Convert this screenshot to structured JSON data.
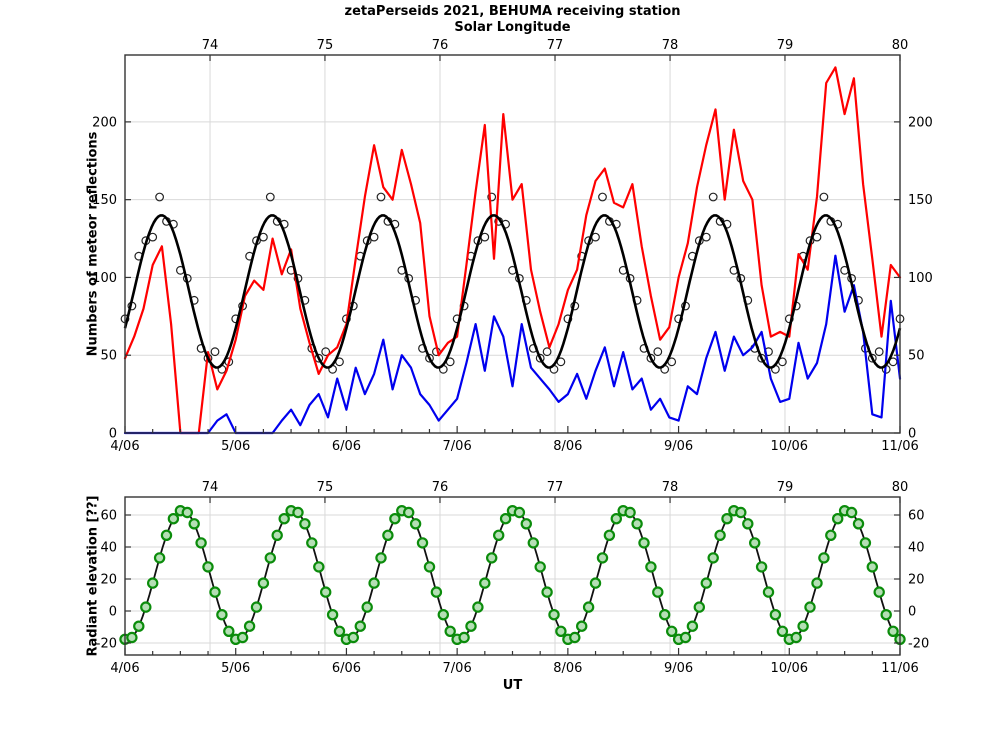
{
  "title": "zetaPerseids 2021, BEHUMA receiving station",
  "top_axis_title": "Solar Longitude",
  "chart_data": [
    {
      "type": "line",
      "ylabel": "Numbers of meteor reflections",
      "xlim": [
        4,
        11
      ],
      "ylim": [
        0,
        243
      ],
      "y_ticks": [
        0,
        50,
        100,
        150,
        200
      ],
      "day_ticks": {
        "positions": [
          4,
          5,
          6,
          7,
          8,
          9,
          10,
          11
        ],
        "labels": [
          "4/06",
          "5/06",
          "6/06",
          "7/06",
          "8/06",
          "9/06",
          "10/06",
          "11/06"
        ],
        "minor_step": 0.25
      },
      "lon_axis": {
        "values": [
          74,
          75,
          76,
          77,
          78,
          79,
          80
        ],
        "day_positions": [
          4.768,
          5.806,
          6.845,
          7.884,
          8.923,
          9.961,
          11.0
        ]
      },
      "grid_color": "#d9d9d9",
      "series": [
        {
          "name": "underdense-counts-red-line",
          "kind": "line",
          "z": 1,
          "color": "#ff0000",
          "width": 2.2,
          "x_start": 4,
          "x_step": 0.0833333,
          "values": [
            48,
            62,
            80,
            108,
            120,
            70,
            0,
            0,
            0,
            52,
            28,
            40,
            60,
            88,
            98,
            92,
            125,
            102,
            118,
            80,
            58,
            38,
            50,
            55,
            70,
            112,
            152,
            185,
            158,
            150,
            182,
            160,
            135,
            75,
            50,
            58,
            62,
            108,
            155,
            198,
            112,
            205,
            150,
            160,
            105,
            78,
            55,
            70,
            92,
            105,
            140,
            162,
            170,
            148,
            145,
            160,
            120,
            88,
            60,
            68,
            100,
            122,
            158,
            185,
            208,
            150,
            195,
            162,
            150,
            95,
            62,
            65,
            62,
            115,
            105,
            152,
            225,
            235,
            205,
            228,
            160,
            112,
            62,
            108,
            100
          ]
        },
        {
          "name": "overdense-counts-blue-line",
          "kind": "line",
          "z": 2,
          "color": "#0000ee",
          "width": 2.2,
          "x_start": 4,
          "x_step": 0.0833333,
          "values": [
            0,
            0,
            0,
            0,
            0,
            0,
            0,
            0,
            0,
            0,
            8,
            12,
            0,
            0,
            0,
            0,
            0,
            8,
            15,
            5,
            18,
            25,
            10,
            35,
            15,
            42,
            25,
            38,
            60,
            28,
            50,
            42,
            25,
            18,
            8,
            15,
            22,
            45,
            70,
            40,
            75,
            62,
            30,
            70,
            42,
            35,
            28,
            20,
            25,
            38,
            22,
            40,
            55,
            30,
            52,
            28,
            35,
            15,
            22,
            10,
            8,
            30,
            25,
            48,
            65,
            40,
            62,
            50,
            55,
            65,
            35,
            20,
            22,
            58,
            35,
            45,
            70,
            114,
            78,
            95,
            65,
            12,
            10,
            85,
            35
          ]
        },
        {
          "name": "sinusoidal-fit-black-line",
          "kind": "model-line",
          "z": 3,
          "color": "#000000",
          "width": 2.6,
          "model": {
            "mean": 91,
            "amplitude": 49,
            "period_days": 1,
            "peak_day_fraction": 0.33
          }
        },
        {
          "name": "hourly-counts-open-circles",
          "kind": "model-markers",
          "z": 0,
          "marker": "open-circle",
          "stroke": "#222222",
          "stroke_width": 1.2,
          "radius": 3.8,
          "x_start": 4,
          "x_step": 0.0625,
          "model_ref": 2,
          "offsets": [
            6,
            -4,
            9,
            2,
            -8,
            12,
            -2,
            5,
            -10,
            3,
            8,
            -6,
            0,
            10,
            -3,
            -7
          ]
        }
      ]
    },
    {
      "type": "line",
      "ylabel": "Radiant elevation [??]",
      "xlabel": "UT",
      "xlim": [
        4,
        11
      ],
      "ylim": [
        -27.5,
        71.25
      ],
      "y_ticks": [
        -20,
        0,
        20,
        40,
        60
      ],
      "day_ticks": {
        "positions": [
          4,
          5,
          6,
          7,
          8,
          9,
          10,
          11
        ],
        "labels": [
          "4/06",
          "5/06",
          "6/06",
          "7/06",
          "8/06",
          "9/06",
          "10/06",
          "11/06"
        ],
        "minor_step": 0.25
      },
      "lon_axis": {
        "values": [
          74,
          75,
          76,
          77,
          78,
          79,
          80
        ],
        "day_positions": [
          4.768,
          5.806,
          6.845,
          7.884,
          8.923,
          9.961,
          11.0
        ]
      },
      "grid_color": "#d9d9d9",
      "series": [
        {
          "name": "radiant-elevation-black-line",
          "kind": "model-line",
          "z": 0,
          "color": "#111111",
          "width": 1.8,
          "model": {
            "mean": 22.5,
            "amplitude": 40.5,
            "period_days": 1,
            "peak_day_fraction": 0.52
          }
        },
        {
          "name": "radiant-elevation-green-markers",
          "kind": "model-markers",
          "z": 1,
          "marker": "filled-circle",
          "fill": "#b5dfb5",
          "stroke": "#0b8c0b",
          "stroke_width": 2.2,
          "radius": 4.6,
          "x_start": 4,
          "x_step": 0.0625,
          "model_ref": 0,
          "offsets": [
            0
          ]
        }
      ]
    }
  ]
}
